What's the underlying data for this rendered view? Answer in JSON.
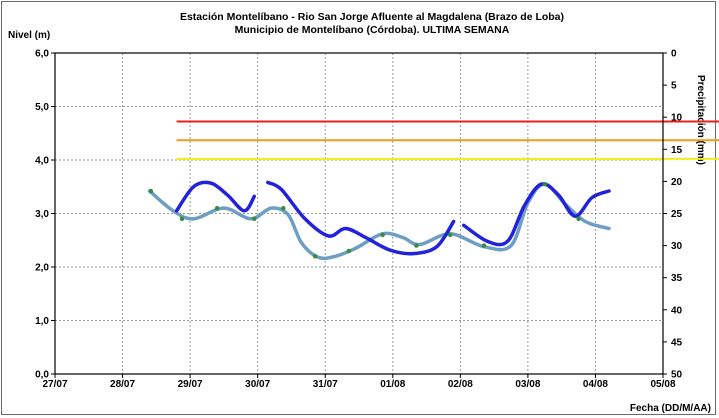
{
  "chart_data": {
    "type": "line",
    "title": "Estación Montelíbano  - Rio San Jorge Afluente al Magdalena (Brazo de Loba)",
    "subtitle": "Municipio de Montelíbano (Córdoba). ULTIMA SEMANA",
    "ylabel": "Nivel (m)",
    "y2label": "Precipitación (mm)",
    "xlabel": "Fecha (DD/M/AA)",
    "ylim": [
      0,
      6
    ],
    "y2lim": [
      0,
      50
    ],
    "y2_inverted": true,
    "grid": true,
    "x_ticks": [
      "27/07",
      "28/07",
      "29/07",
      "30/07",
      "31/07",
      "01/08",
      "02/08",
      "03/08",
      "04/08",
      "05/08"
    ],
    "y_ticks": [
      "0,0",
      "1,0",
      "2,0",
      "3,0",
      "4,0",
      "5,0",
      "6,0"
    ],
    "y2_ticks": [
      "0",
      "5",
      "10",
      "15",
      "20",
      "25",
      "30",
      "35",
      "40",
      "45",
      "50"
    ],
    "colors": {
      "level_line": "#2222dd",
      "trend_line": "#6d9ec4",
      "markers": "#3a8a3a",
      "threshold_red": "#e8201a",
      "threshold_orange": "#f39a1c",
      "threshold_yellow": "#f2ee1a"
    },
    "thresholds": [
      {
        "level": "red",
        "value": 4.72,
        "x_start": 28.8,
        "x_end": 37.8
      },
      {
        "level": "orange",
        "value": 4.37,
        "x_start": 28.8,
        "x_end": 37.8
      },
      {
        "level": "yellow",
        "value": 4.02,
        "x_start": 28.8,
        "x_end": 37.8
      }
    ],
    "series": [
      {
        "segments": [
          [
            [
              28.8,
              3.05
            ],
            [
              29.05,
              3.5
            ],
            [
              29.3,
              3.57
            ],
            [
              29.55,
              3.35
            ],
            [
              29.8,
              3.05
            ],
            [
              29.95,
              3.32
            ]
          ],
          [
            [
              30.15,
              3.58
            ],
            [
              30.35,
              3.45
            ],
            [
              30.7,
              2.9
            ],
            [
              31.05,
              2.58
            ],
            [
              31.3,
              2.72
            ],
            [
              31.6,
              2.55
            ],
            [
              31.95,
              2.32
            ],
            [
              32.3,
              2.25
            ],
            [
              32.65,
              2.38
            ],
            [
              32.9,
              2.85
            ]
          ],
          [
            [
              33.05,
              2.78
            ],
            [
              33.4,
              2.48
            ],
            [
              33.7,
              2.48
            ],
            [
              33.95,
              3.15
            ],
            [
              34.2,
              3.55
            ],
            [
              34.45,
              3.35
            ],
            [
              34.7,
              2.95
            ],
            [
              34.95,
              3.3
            ],
            [
              35.2,
              3.42
            ]
          ]
        ]
      },
      {
        "segments": [
          [
            [
              28.4,
              3.42
            ],
            [
              28.75,
              3.05
            ],
            [
              29.05,
              2.9
            ],
            [
              29.5,
              3.1
            ],
            [
              29.9,
              2.9
            ],
            [
              30.2,
              3.1
            ],
            [
              30.45,
              2.98
            ],
            [
              30.65,
              2.45
            ],
            [
              30.9,
              2.18
            ],
            [
              31.15,
              2.2
            ],
            [
              31.45,
              2.35
            ],
            [
              31.85,
              2.62
            ],
            [
              32.15,
              2.55
            ],
            [
              32.4,
              2.42
            ],
            [
              32.85,
              2.62
            ],
            [
              33.35,
              2.38
            ],
            [
              33.75,
              2.4
            ],
            [
              34.0,
              3.2
            ],
            [
              34.25,
              3.55
            ],
            [
              34.55,
              3.18
            ],
            [
              34.85,
              2.85
            ],
            [
              35.2,
              2.72
            ]
          ]
        ]
      }
    ],
    "markers": [
      [
        28.42,
        3.42
      ],
      [
        28.88,
        2.9
      ],
      [
        29.4,
        3.1
      ],
      [
        29.95,
        2.9
      ],
      [
        30.38,
        3.1
      ],
      [
        30.85,
        2.2
      ],
      [
        31.35,
        2.3
      ],
      [
        31.85,
        2.6
      ],
      [
        32.35,
        2.4
      ],
      [
        32.85,
        2.6
      ],
      [
        33.35,
        2.4
      ],
      [
        34.25,
        3.55
      ],
      [
        34.75,
        2.9
      ]
    ]
  }
}
